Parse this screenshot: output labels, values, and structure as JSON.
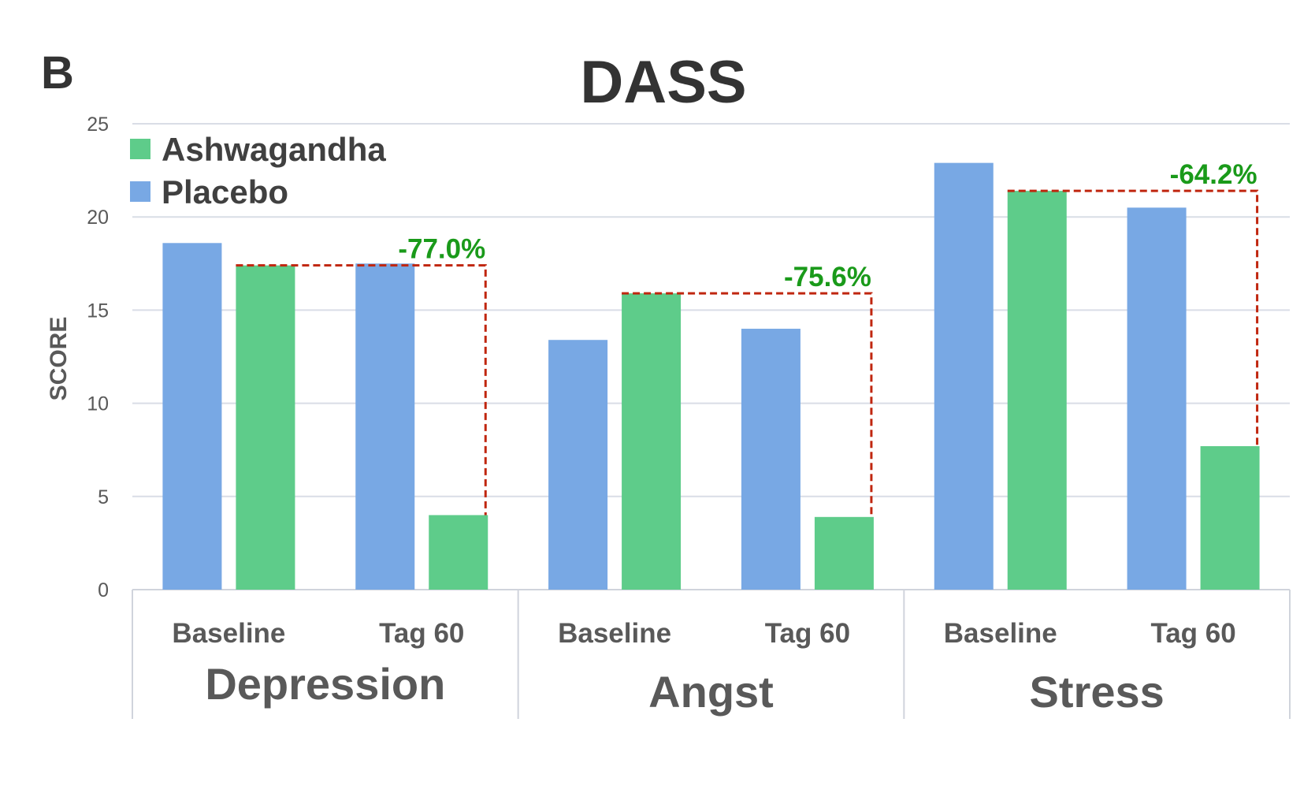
{
  "panel_label": "B",
  "chart_data": {
    "type": "bar",
    "title": "DASS",
    "ylabel": "SCORE",
    "xlabel": "",
    "ylim": [
      0,
      25
    ],
    "yticks": [
      0,
      5,
      10,
      15,
      20,
      25
    ],
    "grid": true,
    "legend_position": "top-left",
    "groups": [
      {
        "name": "Depression",
        "categories": [
          "Baseline",
          "Tag 60"
        ]
      },
      {
        "name": "Angst",
        "categories": [
          "Baseline",
          "Tag 60"
        ]
      },
      {
        "name": "Stress",
        "categories": [
          "Baseline",
          "Tag 60"
        ]
      }
    ],
    "series": [
      {
        "name": "Placebo",
        "color": "#78a8e4",
        "values": [
          18.6,
          17.5,
          13.4,
          14.0,
          22.9,
          20.5
        ]
      },
      {
        "name": "Ashwagandha",
        "color": "#5ecc8a",
        "values": [
          17.4,
          4.0,
          15.9,
          3.9,
          21.4,
          7.7
        ]
      }
    ],
    "legend_order": [
      "Ashwagandha",
      "Placebo"
    ],
    "annotations": [
      {
        "group": 0,
        "text": "-77.0%",
        "from": 17.4,
        "to": 4.0
      },
      {
        "group": 1,
        "text": "-75.6%",
        "from": 15.9,
        "to": 3.9
      },
      {
        "group": 2,
        "text": "-64.2%",
        "from": 21.4,
        "to": 7.7
      }
    ],
    "annotation_color": "#1a9a1a",
    "guide_color": "#c0260f"
  }
}
